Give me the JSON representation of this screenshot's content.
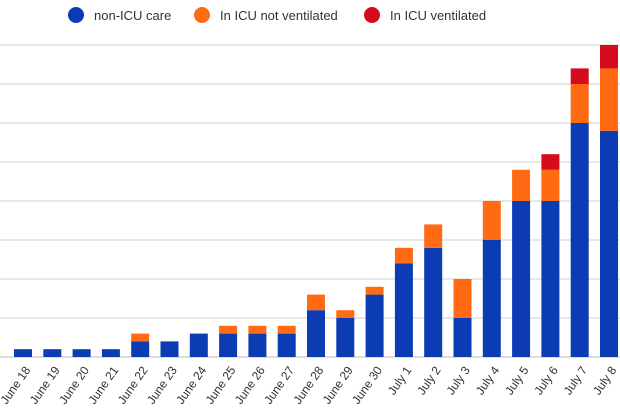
{
  "chart_data": {
    "type": "bar",
    "stacked": true,
    "title": "",
    "xlabel": "",
    "ylabel": "",
    "ylim": [
      0,
      8
    ],
    "grid": true,
    "legend_position": "top",
    "categories": [
      "June 18",
      "June 19",
      "June 20",
      "June 21",
      "June 22",
      "June 23",
      "June 24",
      "June 25",
      "June 26",
      "June 27",
      "June 28",
      "June 29",
      "June 30",
      "July 1",
      "July 2",
      "July 3",
      "July 4",
      "July 5",
      "July 6",
      "July 7",
      "July 8"
    ],
    "series": [
      {
        "name": "non-ICU care",
        "color": "#0b3cb4",
        "values": [
          0.2,
          0.2,
          0.2,
          0.2,
          0.4,
          0.4,
          0.6,
          0.6,
          0.6,
          0.6,
          1.2,
          1.0,
          1.6,
          2.4,
          2.8,
          1.0,
          3.0,
          4.0,
          4.0,
          6.0,
          5.8
        ]
      },
      {
        "name": "In ICU not ventilated",
        "color": "#ff6a13",
        "values": [
          0,
          0,
          0,
          0,
          0.2,
          0,
          0,
          0.2,
          0.2,
          0.2,
          0.4,
          0.2,
          0.2,
          0.4,
          0.6,
          1.0,
          1.0,
          0.8,
          0.8,
          1.0,
          1.6
        ]
      },
      {
        "name": "In ICU ventilated",
        "color": "#d50b1e",
        "values": [
          0,
          0,
          0,
          0,
          0,
          0,
          0,
          0,
          0,
          0,
          0,
          0,
          0,
          0,
          0,
          0,
          0,
          0,
          0.4,
          0.4,
          0.6
        ]
      }
    ]
  }
}
